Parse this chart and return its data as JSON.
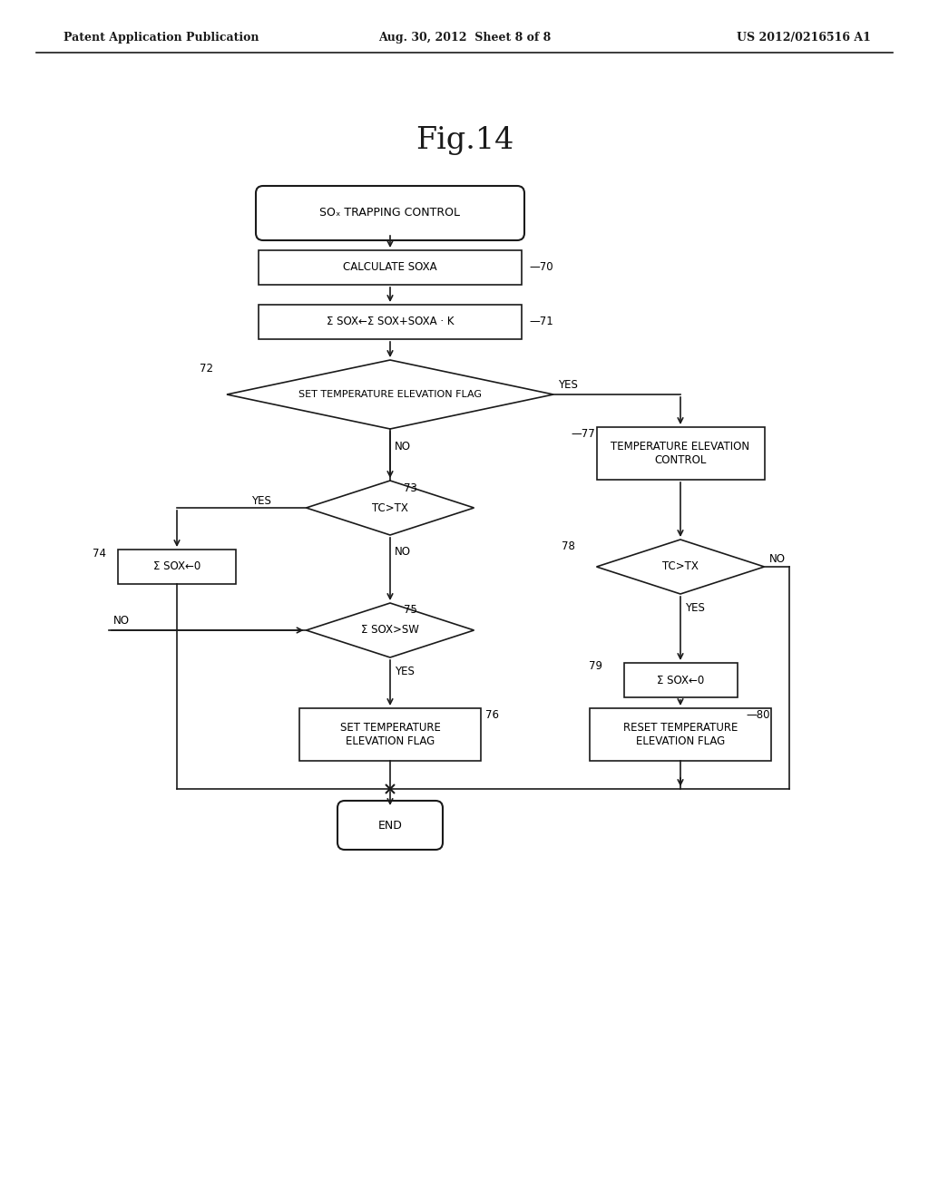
{
  "bg_color": "#ffffff",
  "header_left": "Patent Application Publication",
  "header_center": "Aug. 30, 2012  Sheet 8 of 8",
  "header_right": "US 2012/0216516 A1",
  "fig_title": "Fig.14",
  "line_color": "#1a1a1a",
  "text_color": "#1a1a1a",
  "font_size": 8.5,
  "tag_font_size": 8.5
}
